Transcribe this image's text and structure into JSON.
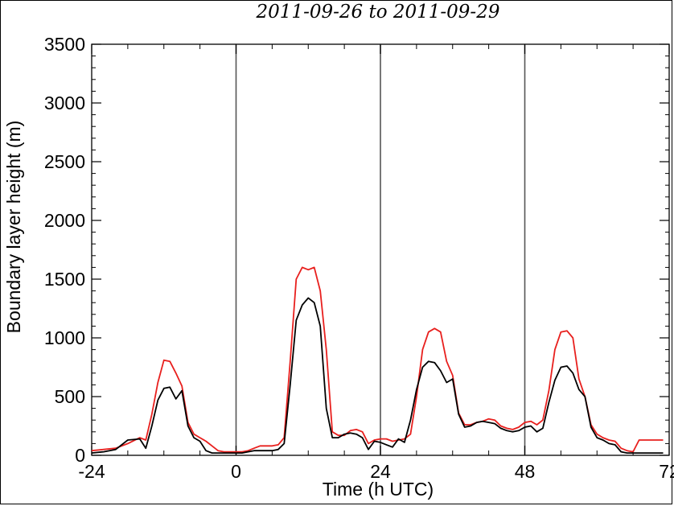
{
  "chart_data": {
    "type": "line",
    "title": "2011-09-26 to 2011-09-29",
    "xlabel": "Time (h UTC)",
    "ylabel": "Boundary layer height (m)",
    "xlim": [
      -24,
      72
    ],
    "ylim": [
      0,
      3500
    ],
    "xticks": [
      -24,
      0,
      24,
      48,
      72
    ],
    "yticks": [
      0,
      500,
      1000,
      1500,
      2000,
      2500,
      3000,
      3500
    ],
    "grid": "vertical lines at 0, 24, 48",
    "day_markers": [
      0,
      24,
      48
    ],
    "series": [
      {
        "color": "#e8201e",
        "x": [
          -24,
          -22,
          -20,
          -18,
          -16,
          -15,
          -14,
          -13,
          -12,
          -11,
          -10,
          -9,
          -8,
          -7,
          -6,
          -5,
          -4,
          -3,
          -2,
          -1,
          0,
          1,
          2,
          3,
          4,
          5,
          6,
          7,
          8,
          9,
          10,
          11,
          12,
          13,
          14,
          15,
          16,
          17,
          18,
          19,
          20,
          21,
          22,
          23,
          24,
          25,
          26,
          27,
          28,
          29,
          30,
          31,
          32,
          33,
          34,
          35,
          36,
          37,
          38,
          39,
          40,
          41,
          42,
          43,
          44,
          45,
          46,
          47,
          48,
          49,
          50,
          51,
          52,
          53,
          54,
          55,
          56,
          57,
          58,
          59,
          60,
          61,
          62,
          63,
          64,
          65,
          66,
          67,
          68,
          69,
          70,
          71
        ],
        "y": [
          40,
          50,
          60,
          100,
          150,
          130,
          350,
          620,
          810,
          800,
          700,
          590,
          280,
          180,
          150,
          120,
          80,
          40,
          30,
          30,
          30,
          30,
          40,
          60,
          80,
          80,
          80,
          90,
          150,
          800,
          1500,
          1600,
          1580,
          1600,
          1400,
          900,
          200,
          170,
          170,
          210,
          220,
          200,
          100,
          130,
          140,
          140,
          120,
          130,
          140,
          180,
          500,
          900,
          1050,
          1080,
          1050,
          800,
          680,
          360,
          260,
          260,
          280,
          290,
          310,
          300,
          250,
          230,
          220,
          240,
          280,
          290,
          260,
          300,
          550,
          900,
          1050,
          1060,
          1000,
          650,
          500,
          260,
          180,
          150,
          130,
          120,
          60,
          40,
          30,
          130,
          130,
          130,
          130,
          130
        ],
        "note": "red line"
      },
      {
        "color": "#000000",
        "x": [
          -24,
          -22,
          -20,
          -18,
          -16,
          -15,
          -14,
          -13,
          -12,
          -11,
          -10,
          -9,
          -8,
          -7,
          -6,
          -5,
          -4,
          -3,
          -2,
          -1,
          0,
          1,
          2,
          3,
          4,
          5,
          6,
          7,
          8,
          9,
          10,
          11,
          12,
          13,
          14,
          15,
          16,
          17,
          18,
          19,
          20,
          21,
          22,
          23,
          24,
          25,
          26,
          27,
          28,
          29,
          30,
          31,
          32,
          33,
          34,
          35,
          36,
          37,
          38,
          39,
          40,
          41,
          42,
          43,
          44,
          45,
          46,
          47,
          48,
          49,
          50,
          51,
          52,
          53,
          54,
          55,
          56,
          57,
          58,
          59,
          60,
          61,
          62,
          63,
          64,
          65,
          66,
          67,
          68,
          69,
          70,
          71
        ],
        "y": [
          20,
          30,
          50,
          130,
          140,
          60,
          250,
          470,
          570,
          580,
          480,
          550,
          250,
          150,
          120,
          40,
          20,
          20,
          20,
          20,
          20,
          20,
          30,
          40,
          40,
          40,
          40,
          50,
          100,
          600,
          1150,
          1280,
          1340,
          1300,
          1100,
          400,
          150,
          150,
          180,
          190,
          180,
          150,
          50,
          120,
          110,
          90,
          70,
          140,
          110,
          300,
          560,
          750,
          800,
          790,
          720,
          620,
          650,
          350,
          240,
          250,
          280,
          290,
          280,
          270,
          230,
          210,
          200,
          210,
          240,
          250,
          200,
          230,
          450,
          640,
          750,
          760,
          700,
          560,
          500,
          240,
          150,
          130,
          100,
          90,
          30,
          20,
          20,
          20,
          20,
          20,
          20,
          20
        ],
        "note": "black line"
      }
    ]
  }
}
